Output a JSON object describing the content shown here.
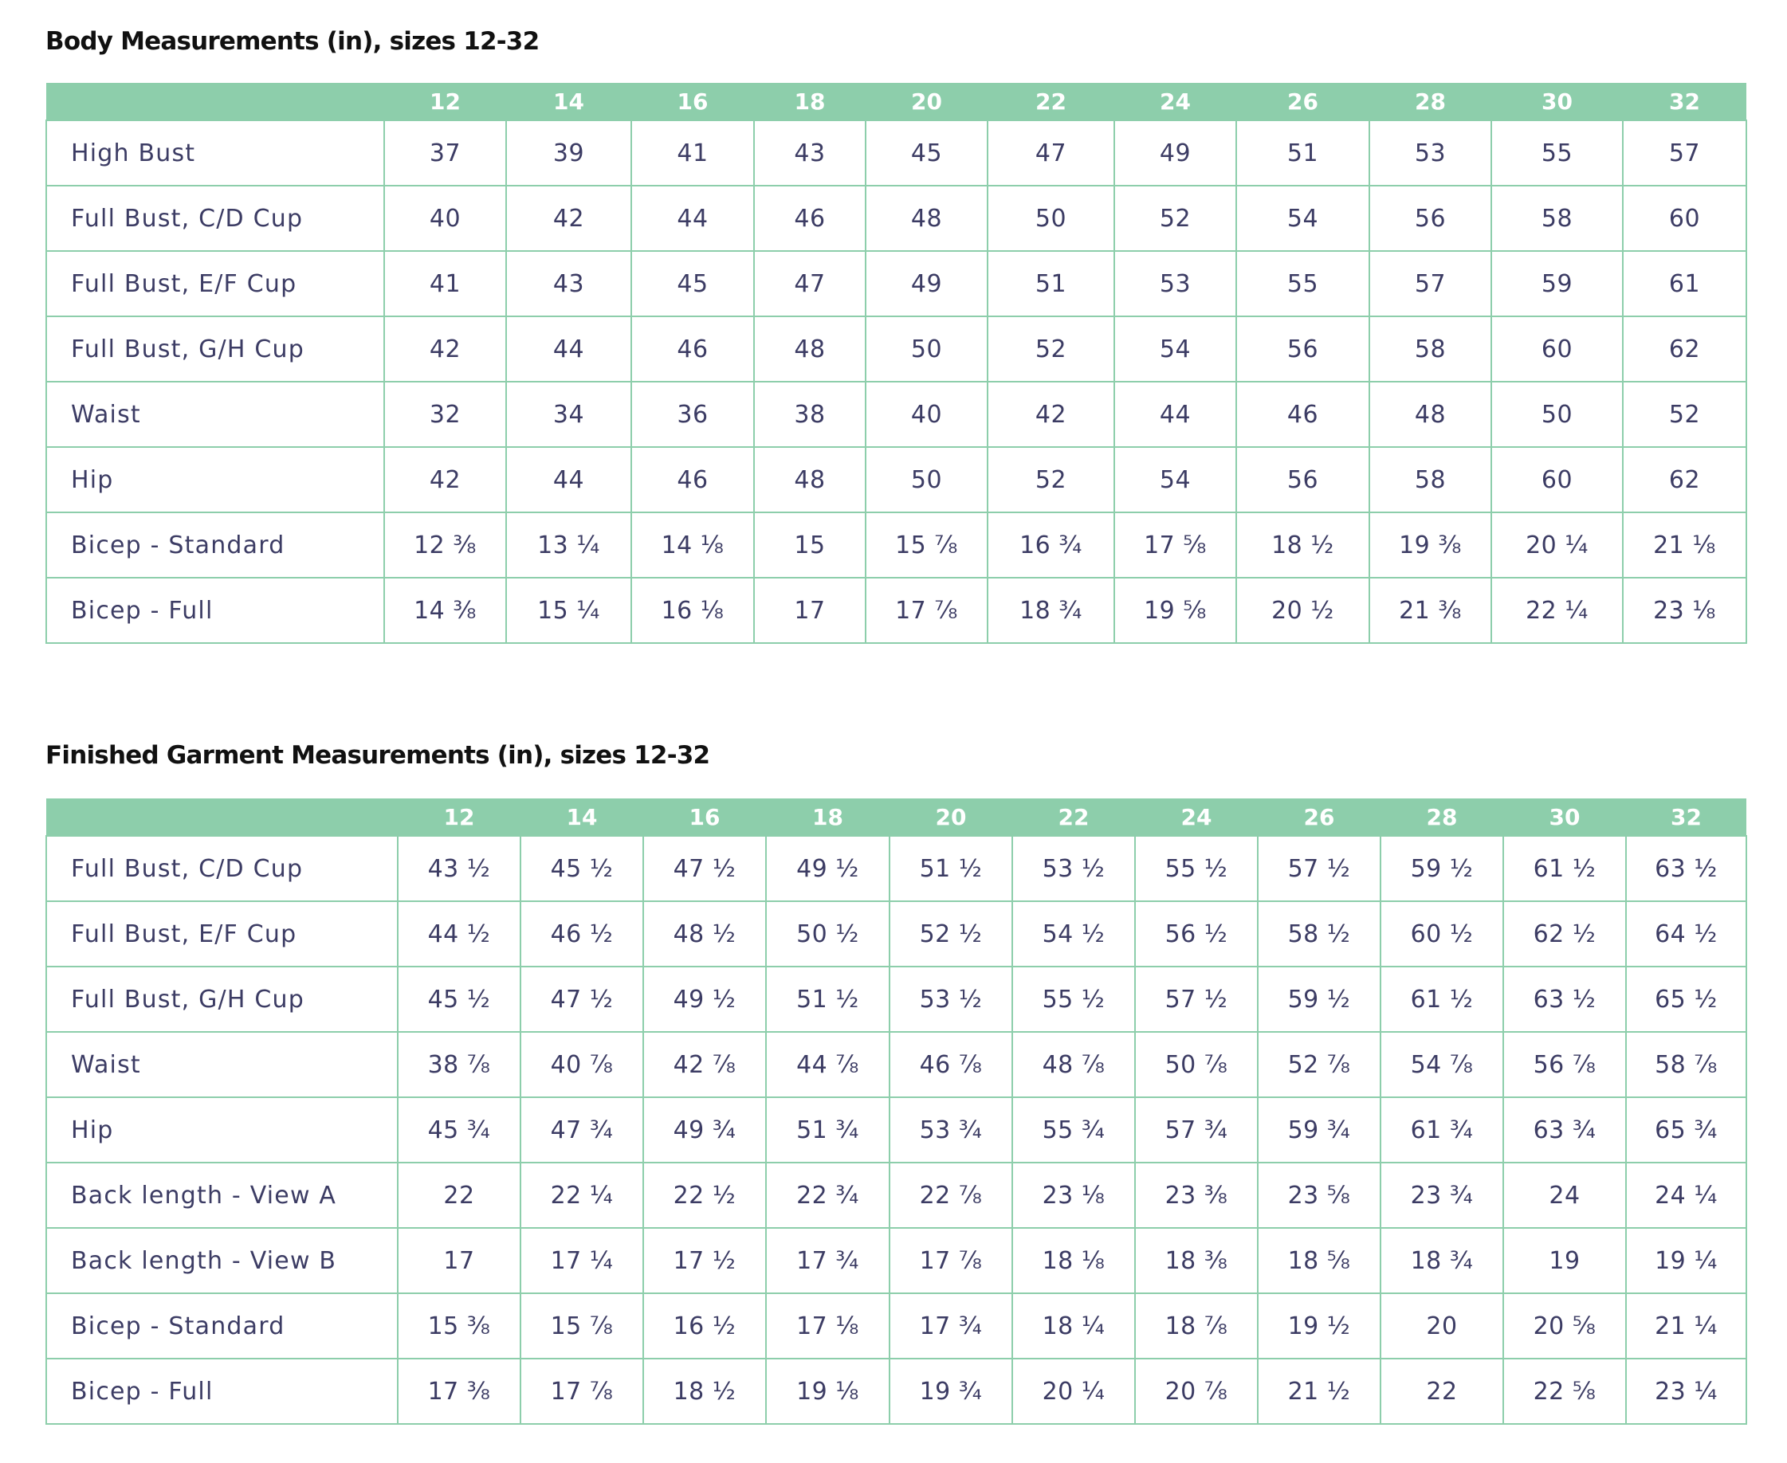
{
  "body_table": {
    "title": "Body Measurements (in), sizes 12-32",
    "sizes": [
      "12",
      "14",
      "16",
      "18",
      "20",
      "22",
      "24",
      "26",
      "28",
      "30",
      "32"
    ],
    "rows": [
      {
        "label": "High Bust",
        "values": [
          "37",
          "39",
          "41",
          "43",
          "45",
          "47",
          "49",
          "51",
          "53",
          "55",
          "57"
        ]
      },
      {
        "label": "Full Bust, C/D Cup",
        "values": [
          "40",
          "42",
          "44",
          "46",
          "48",
          "50",
          "52",
          "54",
          "56",
          "58",
          "60"
        ]
      },
      {
        "label": "Full Bust, E/F Cup",
        "values": [
          "41",
          "43",
          "45",
          "47",
          "49",
          "51",
          "53",
          "55",
          "57",
          "59",
          "61"
        ]
      },
      {
        "label": "Full Bust, G/H Cup",
        "values": [
          "42",
          "44",
          "46",
          "48",
          "50",
          "52",
          "54",
          "56",
          "58",
          "60",
          "62"
        ]
      },
      {
        "label": "Waist",
        "values": [
          "32",
          "34",
          "36",
          "38",
          "40",
          "42",
          "44",
          "46",
          "48",
          "50",
          "52"
        ]
      },
      {
        "label": "Hip",
        "values": [
          "42",
          "44",
          "46",
          "48",
          "50",
          "52",
          "54",
          "56",
          "58",
          "60",
          "62"
        ]
      },
      {
        "label": "Bicep - Standard",
        "values": [
          "12 ⅜",
          "13 ¼",
          "14 ⅛",
          "15",
          "15 ⅞",
          "16 ¾",
          "17 ⅝",
          "18 ½",
          "19 ⅜",
          "20 ¼",
          "21 ⅛"
        ]
      },
      {
        "label": "Bicep - Full",
        "values": [
          "14 ⅜",
          "15 ¼",
          "16 ⅛",
          "17",
          "17 ⅞",
          "18 ¾",
          "19 ⅝",
          "20 ½",
          "21 ⅜",
          "22 ¼",
          "23 ⅛"
        ]
      }
    ]
  },
  "garment_table": {
    "title": "Finished Garment Measurements (in), sizes 12-32",
    "sizes": [
      "12",
      "14",
      "16",
      "18",
      "20",
      "22",
      "24",
      "26",
      "28",
      "30",
      "32"
    ],
    "rows": [
      {
        "label": "Full Bust, C/D Cup",
        "values": [
          "43 ½",
          "45 ½",
          "47 ½",
          "49 ½",
          "51 ½",
          "53 ½",
          "55 ½",
          "57 ½",
          "59 ½",
          "61 ½",
          "63 ½"
        ]
      },
      {
        "label": "Full Bust, E/F Cup",
        "values": [
          "44 ½",
          "46 ½",
          "48 ½",
          "50 ½",
          "52 ½",
          "54 ½",
          "56 ½",
          "58 ½",
          "60 ½",
          "62 ½",
          "64 ½"
        ]
      },
      {
        "label": "Full Bust, G/H Cup",
        "values": [
          "45 ½",
          "47 ½",
          "49 ½",
          "51 ½",
          "53 ½",
          "55 ½",
          "57 ½",
          "59 ½",
          "61 ½",
          "63 ½",
          "65 ½"
        ]
      },
      {
        "label": "Waist",
        "values": [
          "38 ⅞",
          "40 ⅞",
          "42 ⅞",
          "44 ⅞",
          "46 ⅞",
          "48 ⅞",
          "50 ⅞",
          "52 ⅞",
          "54 ⅞",
          "56 ⅞",
          "58 ⅞"
        ]
      },
      {
        "label": "Hip",
        "values": [
          "45 ¾",
          "47 ¾",
          "49 ¾",
          "51 ¾",
          "53 ¾",
          "55 ¾",
          "57 ¾",
          "59 ¾",
          "61 ¾",
          "63 ¾",
          "65 ¾"
        ]
      },
      {
        "label": "Back length - View A",
        "values": [
          "22",
          "22 ¼",
          "22 ½",
          "22 ¾",
          "22 ⅞",
          "23 ⅛",
          "23 ⅜",
          "23 ⅝",
          "23 ¾",
          "24",
          "24 ¼"
        ]
      },
      {
        "label": "Back length - View B",
        "values": [
          "17",
          "17 ¼",
          "17 ½",
          "17 ¾",
          "17 ⅞",
          "18 ⅛",
          "18 ⅜",
          "18 ⅝",
          "18 ¾",
          "19",
          "19 ¼"
        ]
      },
      {
        "label": "Bicep - Standard",
        "values": [
          "15 ⅜",
          "15 ⅞",
          "16 ½",
          "17 ⅛",
          "17 ¾",
          "18 ¼",
          "18 ⅞",
          "19 ½",
          "20",
          "20 ⅝",
          "21 ¼"
        ]
      },
      {
        "label": "Bicep - Full",
        "values": [
          "17 ⅜",
          "17 ⅞",
          "18 ½",
          "19 ⅛",
          "19 ¾",
          "20 ¼",
          "20 ⅞",
          "21 ½",
          "22",
          "22 ⅝",
          "23 ¼"
        ]
      }
    ]
  },
  "colors": {
    "header_fill": "#8dceab",
    "grid_line": "#8dceab",
    "cell_text": "#3c3c64",
    "title_text": "#111111"
  }
}
